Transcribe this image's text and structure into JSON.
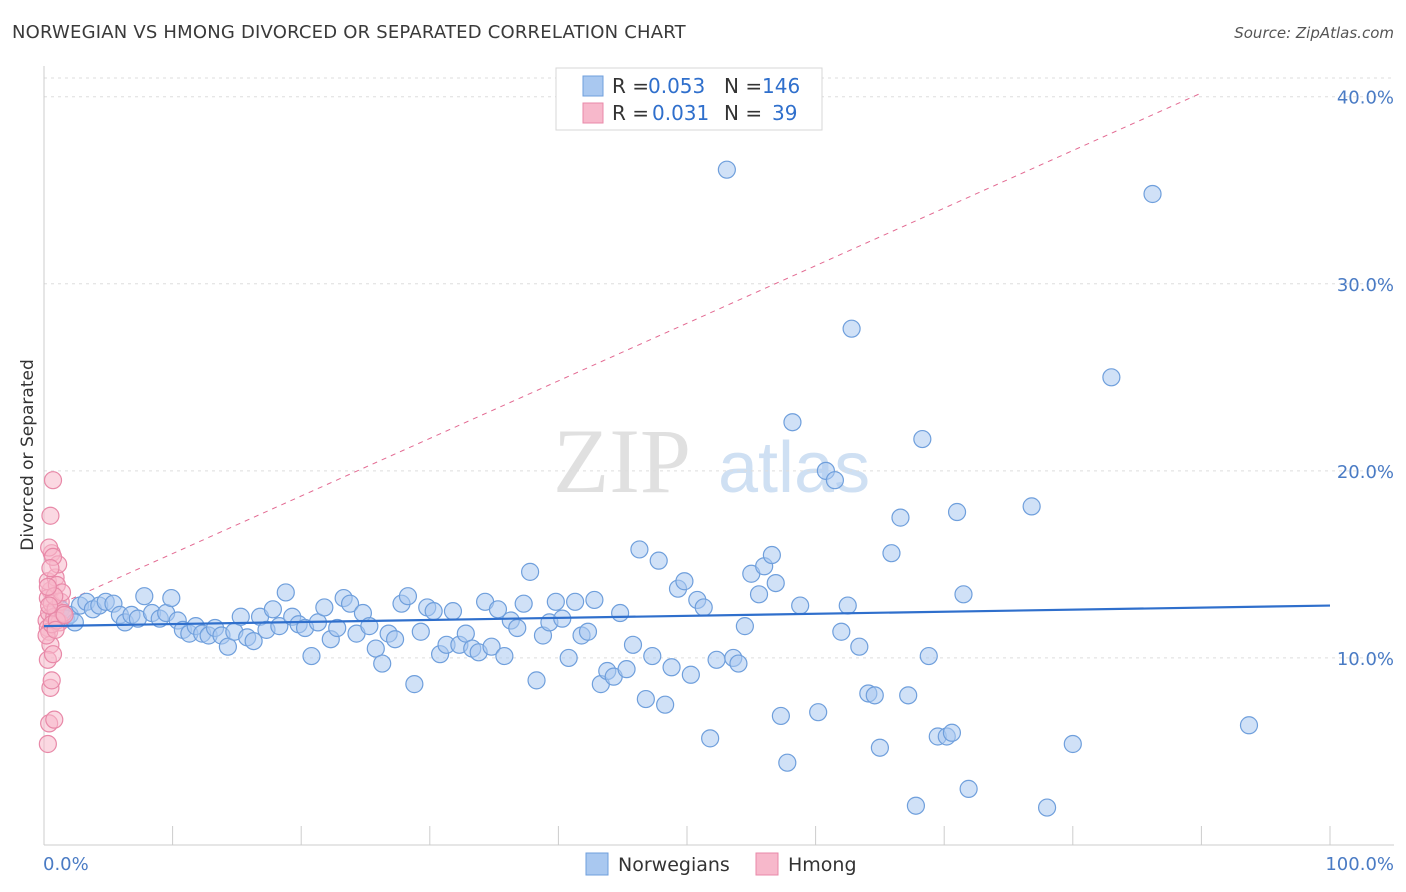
{
  "header": {
    "title": "NORWEGIAN VS HMONG DIVORCED OR SEPARATED CORRELATION CHART",
    "source": "Source: ZipAtlas.com"
  },
  "chart_data": {
    "type": "scatter",
    "title": "NORWEGIAN VS HMONG DIVORCED OR SEPARATED CORRELATION CHART",
    "xlabel": "",
    "ylabel": "Divorced or Separated",
    "xlim": [
      0,
      100
    ],
    "ylim": [
      0,
      41
    ],
    "x_tick_labels": [
      "0.0%",
      "100.0%"
    ],
    "y_ticks": [
      10,
      20,
      30,
      40
    ],
    "y_tick_labels": [
      "10.0%",
      "20.0%",
      "30.0%",
      "40.0%"
    ],
    "watermark": {
      "zip": "ZIP",
      "atlas": "atlas"
    },
    "colors": {
      "norwegians_fill": "#a9c8f0",
      "norwegians_stroke": "#6f9fdc",
      "norwegians_line": "#2f6fcc",
      "hmong_fill": "#f7b8cb",
      "hmong_stroke": "#e889a8",
      "hmong_line": "#e36a92",
      "tick_text": "#4a7bc4",
      "grid": "#dddddd"
    },
    "legend": {
      "rows": [
        {
          "r_label": "R =",
          "r_value": "0.053",
          "n_label": "N =",
          "n_value": "146"
        },
        {
          "r_label": "R =",
          "r_value": "0.031",
          "n_label": "N =",
          "n_value": "39"
        }
      ],
      "bottom": [
        "Norwegians",
        "Hmong"
      ]
    },
    "series": [
      {
        "name": "Norwegians",
        "trend": {
          "x0": 0,
          "y0": 11.7,
          "x1": 100,
          "y1": 12.8
        },
        "points": [
          [
            1,
            12.2
          ],
          [
            1.3,
            12.6
          ],
          [
            1.7,
            12.1
          ],
          [
            2,
            12.3
          ],
          [
            2.4,
            11.9
          ],
          [
            2.8,
            12.8
          ],
          [
            3.3,
            13.0
          ],
          [
            3.8,
            12.6
          ],
          [
            4.3,
            12.8
          ],
          [
            4.8,
            13.0
          ],
          [
            5.4,
            12.9
          ],
          [
            5.9,
            12.3
          ],
          [
            6.3,
            11.9
          ],
          [
            6.8,
            12.3
          ],
          [
            7.3,
            12.1
          ],
          [
            7.8,
            13.3
          ],
          [
            8.4,
            12.4
          ],
          [
            9.0,
            12.1
          ],
          [
            9.5,
            12.4
          ],
          [
            9.9,
            13.2
          ],
          [
            10.4,
            12.0
          ],
          [
            10.8,
            11.5
          ],
          [
            11.3,
            11.3
          ],
          [
            11.8,
            11.7
          ],
          [
            12.3,
            11.3
          ],
          [
            12.8,
            11.2
          ],
          [
            13.3,
            11.6
          ],
          [
            13.8,
            11.2
          ],
          [
            14.3,
            10.6
          ],
          [
            14.8,
            11.4
          ],
          [
            15.3,
            12.2
          ],
          [
            15.8,
            11.1
          ],
          [
            16.3,
            10.9
          ],
          [
            16.8,
            12.2
          ],
          [
            17.3,
            11.5
          ],
          [
            17.8,
            12.6
          ],
          [
            18.3,
            11.7
          ],
          [
            18.8,
            13.5
          ],
          [
            19.3,
            12.2
          ],
          [
            19.8,
            11.8
          ],
          [
            20.3,
            11.6
          ],
          [
            20.8,
            10.1
          ],
          [
            21.3,
            11.9
          ],
          [
            21.8,
            12.7
          ],
          [
            22.3,
            11.0
          ],
          [
            22.8,
            11.6
          ],
          [
            23.3,
            13.2
          ],
          [
            23.8,
            12.9
          ],
          [
            24.3,
            11.3
          ],
          [
            24.8,
            12.4
          ],
          [
            25.3,
            11.7
          ],
          [
            25.8,
            10.5
          ],
          [
            26.3,
            9.7
          ],
          [
            26.8,
            11.3
          ],
          [
            27.3,
            11.0
          ],
          [
            27.8,
            12.9
          ],
          [
            28.3,
            13.3
          ],
          [
            28.8,
            8.6
          ],
          [
            29.3,
            11.4
          ],
          [
            29.8,
            12.7
          ],
          [
            30.3,
            12.5
          ],
          [
            30.8,
            10.2
          ],
          [
            31.3,
            10.7
          ],
          [
            31.8,
            12.5
          ],
          [
            32.3,
            10.7
          ],
          [
            32.8,
            11.3
          ],
          [
            33.3,
            10.5
          ],
          [
            33.8,
            10.3
          ],
          [
            34.3,
            13.0
          ],
          [
            34.8,
            10.6
          ],
          [
            35.3,
            12.6
          ],
          [
            35.8,
            10.1
          ],
          [
            36.3,
            12.0
          ],
          [
            36.8,
            11.6
          ],
          [
            37.3,
            12.9
          ],
          [
            37.8,
            14.6
          ],
          [
            38.3,
            8.8
          ],
          [
            38.8,
            11.2
          ],
          [
            39.3,
            11.9
          ],
          [
            39.8,
            13.0
          ],
          [
            40.3,
            12.1
          ],
          [
            40.8,
            10.0
          ],
          [
            41.3,
            13.0
          ],
          [
            41.8,
            11.2
          ],
          [
            42.3,
            11.4
          ],
          [
            42.8,
            13.1
          ],
          [
            43.3,
            8.6
          ],
          [
            43.8,
            9.3
          ],
          [
            44.3,
            9.0
          ],
          [
            44.8,
            12.4
          ],
          [
            45.3,
            9.4
          ],
          [
            45.8,
            10.7
          ],
          [
            46.3,
            15.8
          ],
          [
            46.8,
            7.8
          ],
          [
            47.3,
            10.1
          ],
          [
            47.8,
            15.2
          ],
          [
            48.3,
            7.5
          ],
          [
            48.8,
            9.5
          ],
          [
            49.3,
            13.7
          ],
          [
            49.8,
            14.1
          ],
          [
            50.3,
            9.1
          ],
          [
            50.8,
            13.1
          ],
          [
            51.3,
            12.7
          ],
          [
            51.8,
            5.7
          ],
          [
            52.3,
            9.9
          ],
          [
            53.1,
            36.1
          ],
          [
            53.6,
            10.0
          ],
          [
            54.0,
            9.7
          ],
          [
            54.5,
            11.7
          ],
          [
            55.0,
            14.5
          ],
          [
            55.6,
            13.4
          ],
          [
            56.0,
            14.9
          ],
          [
            56.6,
            15.5
          ],
          [
            56.9,
            14.0
          ],
          [
            57.3,
            6.9
          ],
          [
            57.8,
            4.4
          ],
          [
            58.2,
            22.6
          ],
          [
            58.8,
            12.8
          ],
          [
            60.2,
            7.1
          ],
          [
            60.8,
            20.0
          ],
          [
            61.5,
            19.5
          ],
          [
            62.0,
            11.4
          ],
          [
            62.5,
            12.8
          ],
          [
            62.8,
            27.6
          ],
          [
            63.4,
            10.6
          ],
          [
            64.1,
            8.1
          ],
          [
            64.6,
            8.0
          ],
          [
            65.0,
            5.2
          ],
          [
            65.9,
            15.6
          ],
          [
            66.6,
            17.5
          ],
          [
            67.2,
            8.0
          ],
          [
            67.8,
            2.1
          ],
          [
            68.3,
            21.7
          ],
          [
            68.8,
            10.1
          ],
          [
            69.5,
            5.8
          ],
          [
            70.2,
            5.8
          ],
          [
            70.6,
            6.0
          ],
          [
            71.0,
            17.8
          ],
          [
            71.5,
            13.4
          ],
          [
            71.9,
            3.0
          ],
          [
            76.8,
            18.1
          ],
          [
            78.0,
            2.0
          ],
          [
            80.0,
            5.4
          ],
          [
            83.0,
            25.0
          ],
          [
            86.2,
            34.8
          ],
          [
            93.7,
            6.4
          ]
        ]
      },
      {
        "name": "Hmong",
        "trend": {
          "x0": 0,
          "y0": 12.5,
          "x1": 90,
          "y1": 40.2
        },
        "points": [
          [
            0.2,
            12.0
          ],
          [
            0.3,
            11.6
          ],
          [
            0.4,
            12.4
          ],
          [
            0.5,
            13.6
          ],
          [
            0.3,
            14.1
          ],
          [
            0.6,
            15.6
          ],
          [
            0.4,
            15.9
          ],
          [
            0.5,
            17.6
          ],
          [
            0.7,
            19.5
          ],
          [
            0.3,
            13.2
          ],
          [
            0.6,
            12.9
          ],
          [
            0.8,
            12.2
          ],
          [
            0.4,
            11.4
          ],
          [
            0.5,
            10.7
          ],
          [
            0.3,
            9.9
          ],
          [
            0.7,
            10.2
          ],
          [
            0.5,
            8.4
          ],
          [
            0.6,
            8.8
          ],
          [
            0.4,
            6.5
          ],
          [
            0.8,
            6.7
          ],
          [
            0.3,
            5.4
          ],
          [
            0.9,
            14.3
          ],
          [
            1.0,
            13.9
          ],
          [
            1.1,
            15.0
          ],
          [
            0.7,
            15.4
          ],
          [
            0.9,
            12.6
          ],
          [
            1.2,
            11.9
          ],
          [
            1.3,
            13.0
          ],
          [
            1.5,
            12.4
          ],
          [
            1.4,
            13.5
          ],
          [
            0.2,
            11.2
          ],
          [
            0.6,
            11.8
          ],
          [
            0.5,
            14.8
          ],
          [
            0.8,
            13.3
          ],
          [
            1.0,
            12.0
          ],
          [
            0.4,
            12.8
          ],
          [
            0.3,
            13.8
          ],
          [
            0.9,
            11.5
          ],
          [
            1.6,
            12.3
          ]
        ]
      }
    ]
  }
}
